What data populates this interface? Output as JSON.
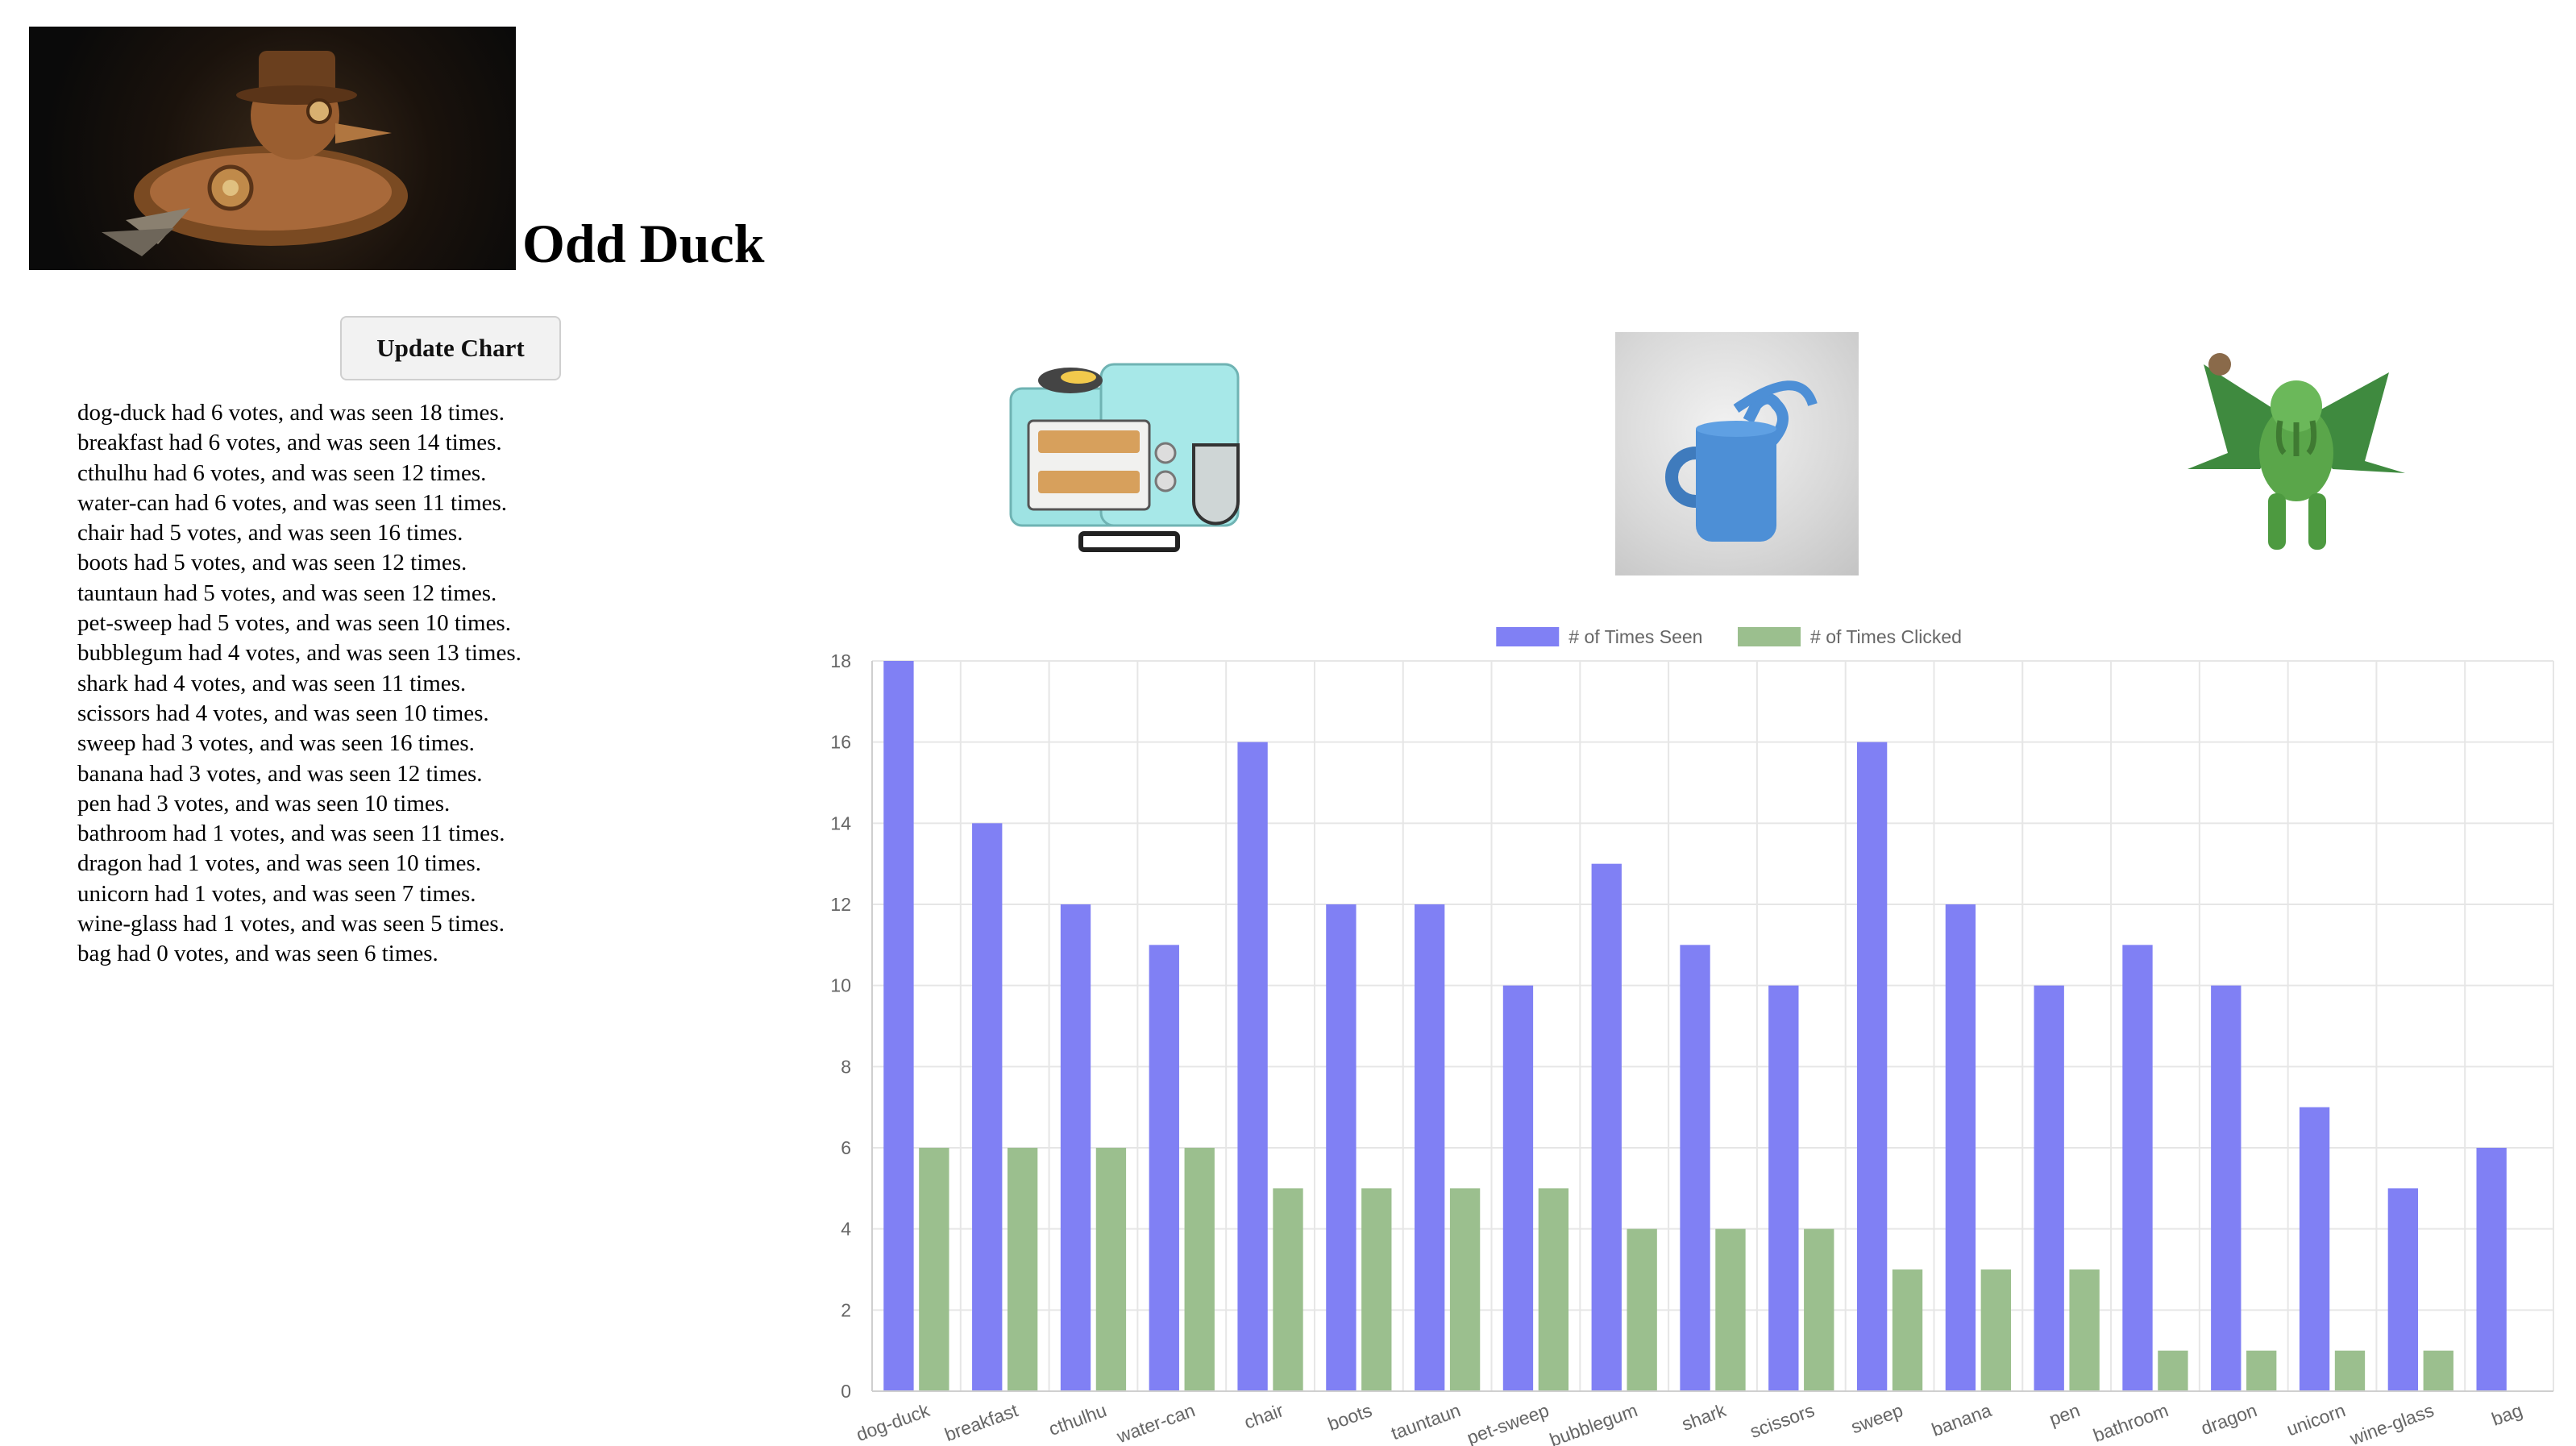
{
  "header": {
    "title": "Odd Duck"
  },
  "controls": {
    "update_label": "Update Chart"
  },
  "results": [
    "dog-duck had 6 votes, and was seen 18 times.",
    "breakfast had 6 votes, and was seen 14 times.",
    "cthulhu had 6 votes, and was seen 12 times.",
    "water-can had 6 votes, and was seen 11 times.",
    "chair had 5 votes, and was seen 16 times.",
    "boots had 5 votes, and was seen 12 times.",
    "tauntaun had 5 votes, and was seen 12 times.",
    "pet-sweep had 5 votes, and was seen 10 times.",
    "bubblegum had 4 votes, and was seen 13 times.",
    "shark had 4 votes, and was seen 11 times.",
    "scissors had 4 votes, and was seen 10 times.",
    "sweep had 3 votes, and was seen 16 times.",
    "banana had 3 votes, and was seen 12 times.",
    "pen had 3 votes, and was seen 10 times.",
    "bathroom had 1 votes, and was seen 11 times.",
    "dragon had 1 votes, and was seen 10 times.",
    "unicorn had 1 votes, and was seen 7 times.",
    "wine-glass had 1 votes, and was seen 5 times.",
    "bag had 0 votes, and was seen 6 times."
  ],
  "colors": {
    "seen": "#8080f4",
    "clicked": "#9bbf8e",
    "grid": "#e6e6e6",
    "tick_text": "#666666"
  },
  "chart_data": {
    "type": "bar",
    "categories": [
      "dog-duck",
      "breakfast",
      "cthulhu",
      "water-can",
      "chair",
      "boots",
      "tauntaun",
      "pet-sweep",
      "bubblegum",
      "shark",
      "scissors",
      "sweep",
      "banana",
      "pen",
      "bathroom",
      "dragon",
      "unicorn",
      "wine-glass",
      "bag"
    ],
    "series": [
      {
        "name": "# of Times Seen",
        "values": [
          18,
          14,
          12,
          11,
          16,
          12,
          12,
          10,
          13,
          11,
          10,
          16,
          12,
          10,
          11,
          10,
          7,
          5,
          6
        ]
      },
      {
        "name": "# of Times Clicked",
        "values": [
          6,
          6,
          6,
          6,
          5,
          5,
          5,
          5,
          4,
          4,
          4,
          3,
          3,
          3,
          1,
          1,
          1,
          1,
          0
        ]
      }
    ],
    "ylim": [
      0,
      18
    ],
    "yticks": [
      0,
      2,
      4,
      6,
      8,
      10,
      12,
      14,
      16,
      18
    ],
    "legend": "top-center",
    "grid": true
  }
}
